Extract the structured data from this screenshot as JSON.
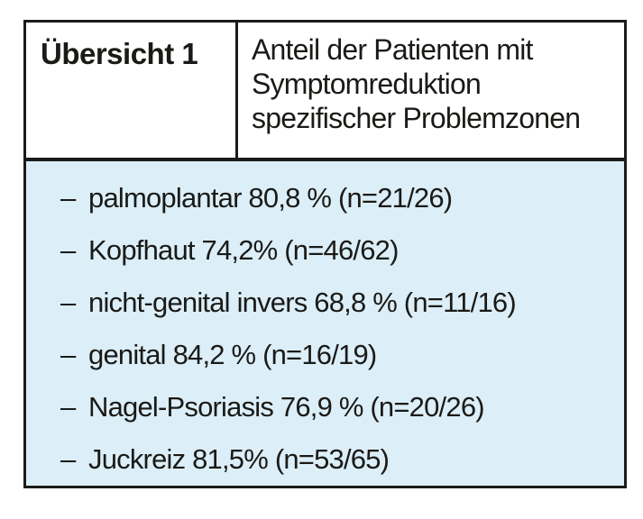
{
  "overview": {
    "label": "Übersicht 1",
    "title": "Anteil der Patienten mit Symptomreduktion spezifischer Problemzonen",
    "title_lines": [
      "Anteil der Patienten mit",
      "Symptomreduktion",
      "spezifischer Problemzonen"
    ],
    "bullet": "–",
    "items": [
      "palmoplantar 80,8 % (n=21/26)",
      "Kopfhaut 74,2% (n=46/62)",
      "nicht-genital invers 68,8 % (n=11/16)",
      "genital 84,2 % (n=16/19)",
      "Nagel-Psoriasis 76,9 % (n=20/26)",
      "Juckreiz 81,5% (n=53/65)"
    ]
  },
  "colors": {
    "panel_bg": "#dceef8",
    "border": "#1b1b18",
    "text": "#1a1a17"
  }
}
